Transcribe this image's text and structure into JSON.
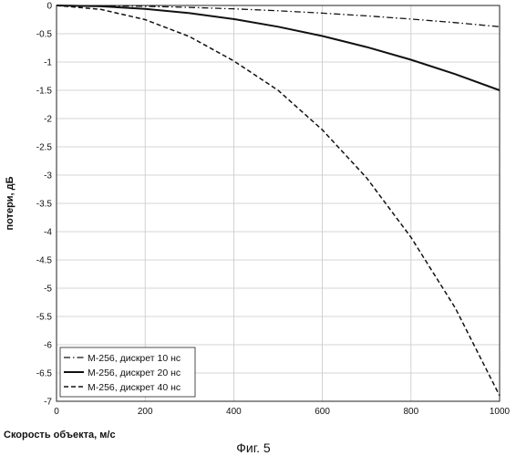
{
  "chart_data": {
    "type": "line",
    "title": "",
    "xlabel": "Скорость объекта, м/с",
    "ylabel": "потери, дБ",
    "caption": "Фиг. 5",
    "xlim": [
      0,
      1000
    ],
    "ylim": [
      -7,
      0
    ],
    "xticks": [
      0,
      200,
      400,
      600,
      800,
      1000
    ],
    "yticks": [
      0,
      -0.5,
      -1,
      -1.5,
      -2,
      -2.5,
      -3,
      -3.5,
      -4,
      -4.5,
      -5,
      -5.5,
      -6,
      -6.5,
      -7
    ],
    "xtick_labels": [
      "0",
      "200",
      "400",
      "600",
      "800",
      "1000"
    ],
    "ytick_labels": [
      "0",
      "-0.5",
      "-1",
      "-1.5",
      "-2",
      "-2.5",
      "-3",
      "-3.5",
      "-4",
      "-4.5",
      "-5",
      "-5.5",
      "-6",
      "-6.5",
      "-7"
    ],
    "grid": true,
    "legend_position": "bottom-left",
    "x": [
      0,
      100,
      200,
      300,
      400,
      500,
      600,
      700,
      800,
      900,
      1000
    ],
    "series": [
      {
        "name": "M-256, дискрет 10 нс",
        "style": "dashdot",
        "values": [
          0,
          -0.004,
          -0.015,
          -0.034,
          -0.06,
          -0.094,
          -0.135,
          -0.184,
          -0.24,
          -0.304,
          -0.375
        ]
      },
      {
        "name": "M-256, дискрет 20 нс",
        "style": "solid",
        "values": [
          0,
          -0.015,
          -0.06,
          -0.135,
          -0.24,
          -0.375,
          -0.54,
          -0.735,
          -0.96,
          -1.215,
          -1.5
        ]
      },
      {
        "name": "M-256, дискрет 40 нс",
        "style": "dashed",
        "values": [
          0,
          -0.07,
          -0.25,
          -0.55,
          -0.98,
          -1.5,
          -2.2,
          -3.05,
          -4.1,
          -5.35,
          -6.9
        ]
      }
    ],
    "colors": {
      "line": "#111111",
      "grid": "#c8c8c8",
      "background": "#ffffff"
    }
  }
}
